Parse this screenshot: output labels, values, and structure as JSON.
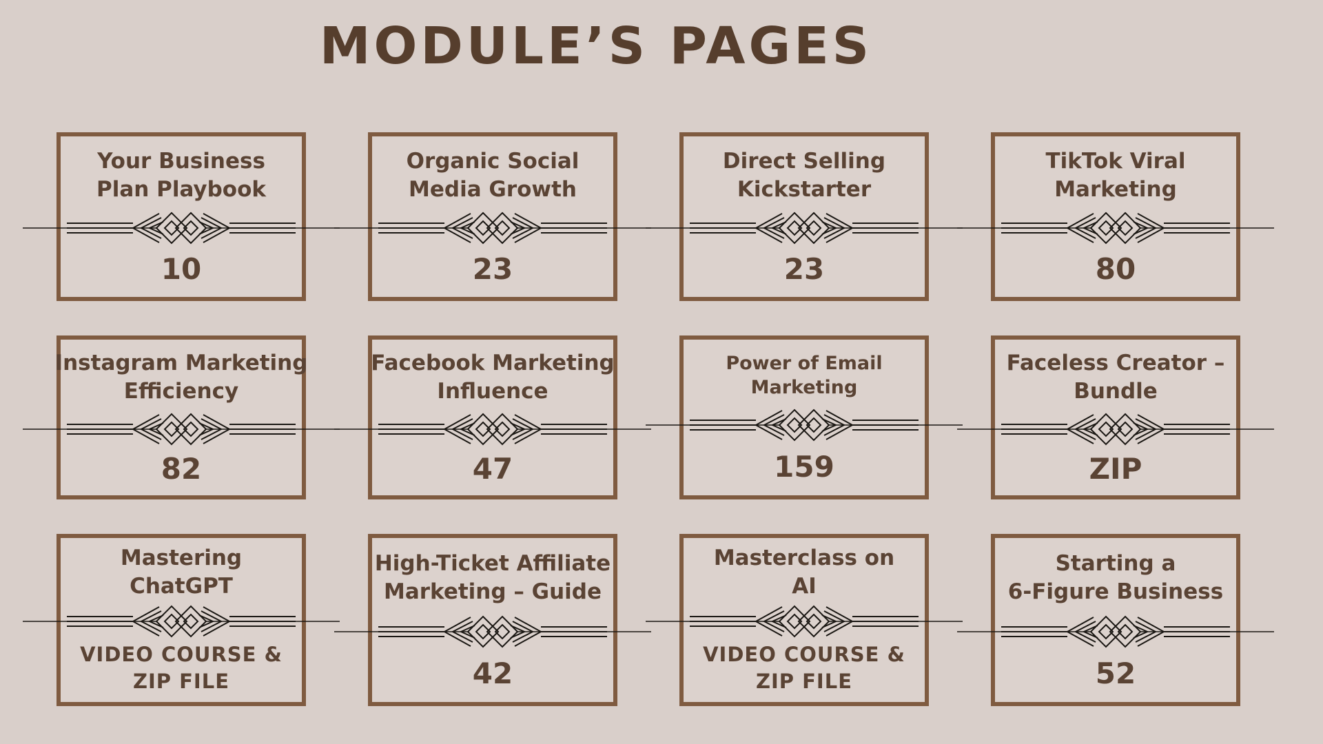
{
  "page": {
    "title": "MODULE’S PAGES"
  },
  "colors": {
    "background": "#d9cfca",
    "card_background": "#dcd2cd",
    "card_border": "#7f5b40",
    "heading_text": "#563e2d",
    "card_text": "#5a4334",
    "ornament": "#1a1713"
  },
  "cards": [
    {
      "id": "your-business-plan-playbook",
      "title_lines": [
        "Your Business",
        "Plan Playbook"
      ],
      "value_lines": [
        "10"
      ]
    },
    {
      "id": "organic-social-media-growth",
      "title_lines": [
        "Organic Social",
        "Media Growth"
      ],
      "value_lines": [
        "23"
      ]
    },
    {
      "id": "direct-selling-kickstarter",
      "title_lines": [
        "Direct Selling",
        "Kickstarter"
      ],
      "value_lines": [
        "23"
      ]
    },
    {
      "id": "tiktok-viral-marketing",
      "title_lines": [
        "TikTok Viral",
        "Marketing"
      ],
      "value_lines": [
        "80"
      ]
    },
    {
      "id": "instagram-marketing-efficiency",
      "title_lines": [
        "Instagram Marketing",
        "Efficiency"
      ],
      "value_lines": [
        "82"
      ]
    },
    {
      "id": "facebook-marketing-influence",
      "title_lines": [
        "Facebook Marketing",
        "Influence"
      ],
      "value_lines": [
        "47"
      ]
    },
    {
      "id": "power-of-email-marketing",
      "title_lines": [
        "Power of Email",
        "Marketing"
      ],
      "value_lines": [
        "159"
      ],
      "small_title": true
    },
    {
      "id": "faceless-creator-bundle",
      "title_lines": [
        "Faceless Creator –",
        "Bundle"
      ],
      "value_lines": [
        "ZIP"
      ]
    },
    {
      "id": "mastering-chatgpt",
      "title_lines": [
        "Mastering",
        "ChatGPT"
      ],
      "value_lines": [
        "VIDEO COURSE &",
        "ZIP FILE"
      ],
      "value_small": true
    },
    {
      "id": "high-ticket-affiliate-marketing-guide",
      "title_lines": [
        "High-Ticket Affiliate",
        "Marketing – Guide"
      ],
      "value_lines": [
        "42"
      ]
    },
    {
      "id": "masterclass-on-ai",
      "title_lines": [
        "Masterclass on",
        "AI"
      ],
      "value_lines": [
        "VIDEO COURSE &",
        "ZIP FILE"
      ],
      "value_small": true
    },
    {
      "id": "starting-a-6-figure-business",
      "title_lines": [
        "Starting a",
        "6-Figure Business"
      ],
      "value_lines": [
        "52"
      ]
    }
  ]
}
